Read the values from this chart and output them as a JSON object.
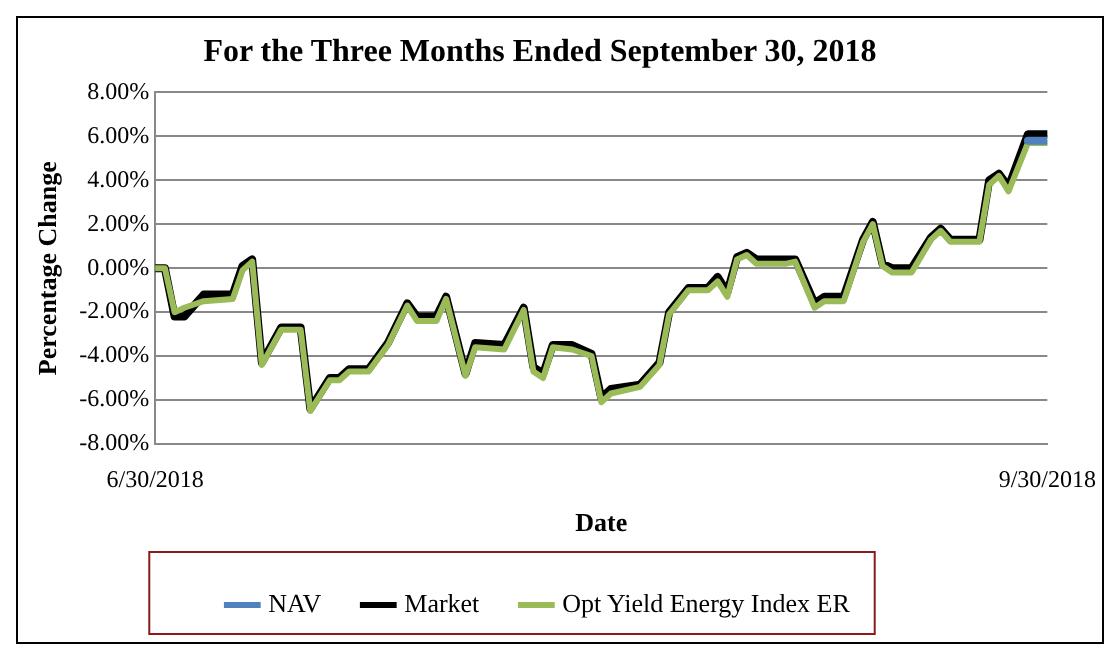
{
  "chart_data": {
    "type": "line",
    "title": "For the Three Months Ended September 30, 2018",
    "xlabel": "Date",
    "ylabel": "Percentage Change",
    "x": [
      "2018-06-30",
      "2018-07-01",
      "2018-07-02",
      "2018-07-03",
      "2018-07-05",
      "2018-07-08",
      "2018-07-09",
      "2018-07-10",
      "2018-07-11",
      "2018-07-13",
      "2018-07-15",
      "2018-07-16",
      "2018-07-18",
      "2018-07-19",
      "2018-07-20",
      "2018-07-22",
      "2018-07-24",
      "2018-07-26",
      "2018-07-27",
      "2018-07-29",
      "2018-07-30",
      "2018-08-01",
      "2018-08-02",
      "2018-08-05",
      "2018-08-07",
      "2018-08-08",
      "2018-08-09",
      "2018-08-10",
      "2018-08-12",
      "2018-08-14",
      "2018-08-15",
      "2018-08-16",
      "2018-08-19",
      "2018-08-21",
      "2018-08-22",
      "2018-08-24",
      "2018-08-26",
      "2018-08-27",
      "2018-08-28",
      "2018-08-29",
      "2018-08-30",
      "2018-08-31",
      "2018-09-03",
      "2018-09-04",
      "2018-09-06",
      "2018-09-07",
      "2018-09-09",
      "2018-09-11",
      "2018-09-12",
      "2018-09-13",
      "2018-09-14",
      "2018-09-16",
      "2018-09-18",
      "2018-09-19",
      "2018-09-20",
      "2018-09-23",
      "2018-09-24",
      "2018-09-25",
      "2018-09-26",
      "2018-09-28",
      "2018-09-30"
    ],
    "series": [
      {
        "name": "NAV",
        "color": "#4f81bd",
        "values": [
          null,
          null,
          null,
          null,
          null,
          null,
          null,
          null,
          null,
          null,
          null,
          null,
          null,
          null,
          null,
          null,
          null,
          null,
          null,
          null,
          null,
          null,
          null,
          null,
          null,
          null,
          null,
          null,
          null,
          null,
          null,
          null,
          null,
          null,
          null,
          null,
          null,
          null,
          null,
          null,
          null,
          null,
          null,
          null,
          null,
          null,
          null,
          null,
          null,
          null,
          null,
          null,
          null,
          null,
          null,
          null,
          null,
          null,
          null,
          5.8,
          5.8
        ]
      },
      {
        "name": "Market",
        "color": "#000000",
        "values": [
          0,
          0,
          -2.2,
          -2.2,
          -1.2,
          -1.2,
          0.1,
          0.4,
          -4.3,
          -2.7,
          -2.7,
          -6.4,
          -5.0,
          -5.0,
          -4.6,
          -4.6,
          -3.4,
          -1.6,
          -2.2,
          -2.2,
          -1.3,
          -4.8,
          -3.4,
          -3.5,
          -1.8,
          -4.5,
          -4.8,
          -3.5,
          -3.5,
          -3.9,
          -5.9,
          -5.5,
          -5.3,
          -4.3,
          -2.0,
          -0.9,
          -0.9,
          -0.4,
          -1.1,
          0.5,
          0.7,
          0.4,
          0.4,
          0.4,
          -1.6,
          -1.3,
          -1.3,
          1.3,
          2.1,
          0.2,
          0.0,
          0.0,
          1.4,
          1.8,
          1.3,
          1.3,
          4.0,
          4.3,
          3.7,
          6.1,
          6.1
        ]
      },
      {
        "name": "Opt Yield Energy Index ER",
        "color": "#9bbb59",
        "values": [
          0,
          0,
          -2.0,
          -1.8,
          -1.5,
          -1.4,
          -0.1,
          0.3,
          -4.4,
          -2.8,
          -2.8,
          -6.5,
          -5.1,
          -5.1,
          -4.7,
          -4.7,
          -3.5,
          -1.7,
          -2.4,
          -2.4,
          -1.4,
          -4.9,
          -3.6,
          -3.7,
          -1.9,
          -4.7,
          -5.0,
          -3.6,
          -3.7,
          -4.0,
          -6.1,
          -5.7,
          -5.4,
          -4.4,
          -2.1,
          -1.0,
          -1.0,
          -0.6,
          -1.3,
          0.4,
          0.6,
          0.2,
          0.2,
          0.3,
          -1.8,
          -1.5,
          -1.5,
          1.2,
          2.0,
          0.1,
          -0.2,
          -0.2,
          1.3,
          1.7,
          1.2,
          1.2,
          3.8,
          4.2,
          3.5,
          5.7,
          5.7
        ]
      }
    ],
    "xlim": [
      "2018-06-30",
      "2018-09-30"
    ],
    "xticks": [
      {
        "value": "2018-06-30",
        "label": "6/30/2018"
      },
      {
        "value": "2018-09-30",
        "label": "9/30/2018"
      }
    ],
    "ylim": [
      -8,
      8
    ],
    "yticks": [
      {
        "value": -8,
        "label": "-8.00%"
      },
      {
        "value": -6,
        "label": "-6.00%"
      },
      {
        "value": -4,
        "label": "-4.00%"
      },
      {
        "value": -2,
        "label": "-2.00%"
      },
      {
        "value": 0,
        "label": "0.00%"
      },
      {
        "value": 2,
        "label": "2.00%"
      },
      {
        "value": 4,
        "label": "4.00%"
      },
      {
        "value": 6,
        "label": "6.00%"
      },
      {
        "value": 8,
        "label": "8.00%"
      }
    ],
    "grid": "y",
    "legend": "bottom",
    "marker": "none",
    "line_style": "solid"
  }
}
